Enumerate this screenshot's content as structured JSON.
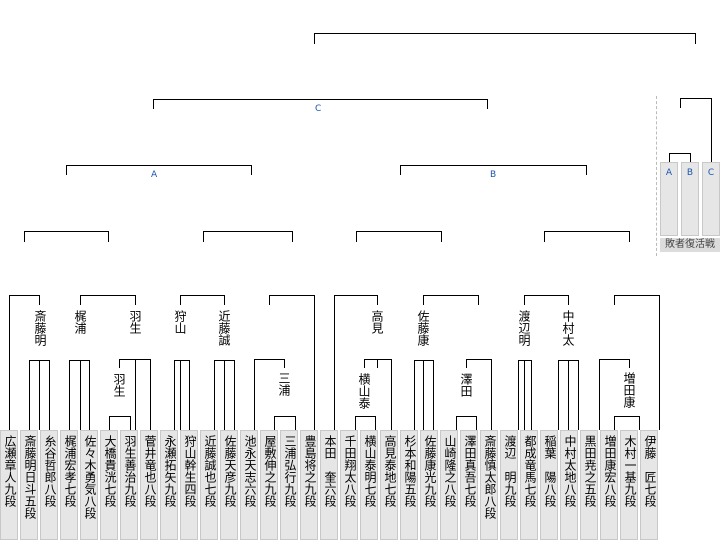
{
  "players": [
    "広瀬章人九段",
    "斎藤明日斗五段",
    "糸谷哲郎八段",
    "梶浦宏孝七段",
    "佐々木勇気八段",
    "大橋貴洸七段",
    "羽生善治九段",
    "菅井竜也八段",
    "永瀬拓矢九段",
    "狩山幹生四段",
    "近藤誠也七段",
    "佐藤天彦九段",
    "池永天志六段",
    "屋敷伸之九段",
    "三浦弘行九段",
    "豊島将之九段",
    "本田　奎六段",
    "千田翔太八段",
    "横山泰明七段",
    "高見泰地七段",
    "杉本和陽五段",
    "佐藤康光九段",
    "山崎隆之八段",
    "澤田真吾七段",
    "斎藤慎太郎八段",
    "渡辺　明九段",
    "都成竜馬七段",
    "稲葉　陽八段",
    "中村太地八段",
    "黒田尭之五段",
    "増田康宏八段",
    "木村一基九段",
    "伊藤　匠七段"
  ],
  "winners": {
    "r1": [
      "斎藤明",
      "梶浦",
      "羽生",
      "狩山",
      "近藤誠",
      "三浦",
      "高見",
      "佐藤康",
      "渡辺明",
      "中村太",
      "増田康"
    ],
    "r2": [
      "羽生",
      "三浦",
      "横山泰",
      "澤田",
      "増田康"
    ]
  },
  "block_labels": {
    "a": "A",
    "b": "B",
    "c": "C"
  },
  "revival": {
    "slots": [
      "A",
      "B",
      "C"
    ],
    "label": "敗者復活戦"
  }
}
